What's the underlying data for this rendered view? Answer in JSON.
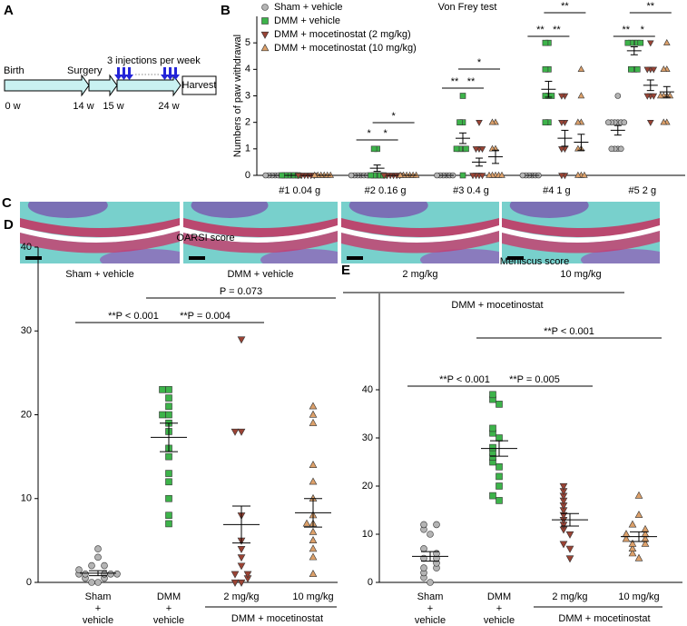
{
  "panel_labels": [
    "A",
    "B",
    "C",
    "D",
    "E"
  ],
  "timeline": {
    "note": "3 injections per week",
    "stages": [
      "Birth",
      "Surgery"
    ],
    "end": "Harvest",
    "weeks": [
      "0 w",
      "14 w",
      "15 w",
      "24 w"
    ]
  },
  "histology": {
    "labels": [
      "Sham + vehicle",
      "DMM + vehicle",
      "2 mg/kg",
      "10 mg/kg"
    ],
    "group_label": "DMM + mocetinostat"
  },
  "chart_data": [
    {
      "type": "dot",
      "title": "Von Frey test",
      "y_label": "Numbers of paw withdrawal",
      "categories": [
        "#1 0.04 g",
        "#2 0.16 g",
        "#3 0.4 g",
        "#4 1 g",
        "#5 2 g"
      ],
      "ylim": [
        0,
        6
      ],
      "yticks": [
        0,
        1,
        2,
        3,
        4,
        5
      ],
      "legend": "top-left",
      "series": [
        {
          "name": "Sham + vehicle",
          "color": "#b4b4b4",
          "marker": "circle",
          "values": [
            0,
            0,
            0,
            0,
            1.7
          ],
          "errors": [
            0,
            0,
            0,
            0,
            0.18
          ],
          "points": [
            [
              0,
              0,
              0,
              0,
              0,
              0
            ],
            [
              0,
              0,
              0,
              0,
              0,
              0
            ],
            [
              0,
              0,
              0,
              0,
              0,
              0
            ],
            [
              0,
              0,
              0,
              0,
              0,
              0
            ],
            [
              1,
              1,
              1,
              1,
              2,
              2,
              2,
              2,
              2,
              2,
              3
            ]
          ]
        },
        {
          "name": "DMM + vehicle",
          "color": "#3db34a",
          "marker": "square",
          "values": [
            0,
            0.27,
            1.4,
            3.25,
            4.7
          ],
          "errors": [
            0,
            0.12,
            0.2,
            0.3,
            0.15
          ],
          "points": [
            [
              0,
              0,
              0,
              0,
              0,
              0
            ],
            [
              0,
              0,
              0,
              0,
              0,
              1,
              1
            ],
            [
              0,
              1,
              1,
              1,
              1,
              2,
              2,
              3
            ],
            [
              2,
              2,
              3,
              3,
              3,
              4,
              4,
              5,
              5
            ],
            [
              4,
              4,
              4,
              5,
              5,
              5,
              5,
              5
            ]
          ]
        },
        {
          "name": "DMM + mocetinostat (2 mg/kg)",
          "color": "#9a4334",
          "marker": "tri-down",
          "values": [
            0,
            0,
            0.5,
            1.4,
            3.4
          ],
          "errors": [
            0,
            0,
            0.15,
            0.3,
            0.2
          ],
          "points": [
            [
              0,
              0,
              0,
              0,
              0,
              0
            ],
            [
              0,
              0,
              0,
              0,
              0,
              0
            ],
            [
              0,
              0,
              0,
              0,
              1,
              1,
              1,
              2
            ],
            [
              0,
              0,
              1,
              1,
              2,
              2,
              3,
              3
            ],
            [
              2,
              3,
              3,
              3,
              4,
              4,
              4,
              5
            ]
          ]
        },
        {
          "name": "DMM + mocetinostat (10 mg/kg)",
          "color": "#dca06a",
          "marker": "tri-up",
          "values": [
            0,
            0,
            0.7,
            1.25,
            3.15
          ],
          "errors": [
            0,
            0,
            0.25,
            0.3,
            0.2
          ],
          "points": [
            [
              0,
              0,
              0,
              0,
              0,
              0
            ],
            [
              0,
              0,
              0,
              0,
              0,
              0
            ],
            [
              0,
              0,
              0,
              0,
              0,
              1,
              1,
              2,
              2
            ],
            [
              0,
              0,
              0,
              1,
              1,
              2,
              2,
              3,
              4
            ],
            [
              2,
              2,
              3,
              3,
              3,
              3,
              4,
              4,
              5
            ]
          ]
        }
      ],
      "annotations": [
        "*",
        "*",
        "*",
        "**",
        "**",
        "*",
        "**",
        "**",
        "**",
        "**",
        "*",
        "**"
      ]
    },
    {
      "type": "scatter-mean",
      "title": "OARSI score",
      "categories": [
        [
          "Sham",
          "+",
          "vehicle"
        ],
        [
          "DMM",
          "+",
          "vehicle"
        ],
        [
          "2 mg/kg"
        ],
        [
          "10 mg/kg"
        ]
      ],
      "group_label": "DMM + mocetinostat",
      "ylim": [
        0,
        40
      ],
      "yticks": [
        0,
        10,
        20,
        30,
        40
      ],
      "colors": [
        "#b4b4b4",
        "#3db34a",
        "#9a4334",
        "#dca06a"
      ],
      "markers": [
        "circle",
        "square",
        "tri-down",
        "tri-up"
      ],
      "values": [
        1.1,
        17.3,
        6.9,
        8.3
      ],
      "errors": [
        0.3,
        1.7,
        2.2,
        1.7
      ],
      "points": [
        [
          0,
          0,
          0.5,
          0.5,
          1,
          1,
          1,
          1,
          1,
          1.5,
          2,
          2,
          3,
          4
        ],
        [
          7,
          8,
          10,
          12,
          13,
          15,
          16,
          18,
          19,
          20,
          20,
          21,
          22,
          23,
          23
        ],
        [
          0,
          0,
          0.5,
          1,
          1,
          2,
          3,
          4,
          5,
          8,
          18,
          18,
          29
        ],
        [
          1,
          3,
          4,
          5,
          6,
          7,
          7,
          8,
          10,
          12,
          14,
          19,
          20,
          21
        ]
      ],
      "annotations": [
        "**P < 0.001",
        "**P = 0.004",
        "P = 0.073"
      ]
    },
    {
      "type": "scatter-mean",
      "title": "Meniscus score",
      "categories": [
        [
          "Sham",
          "+",
          "vehicle"
        ],
        [
          "DMM",
          "+",
          "vehicle"
        ],
        [
          "2 mg/kg"
        ],
        [
          "10 mg/kg"
        ]
      ],
      "group_label": "DMM + mocetinostat",
      "ylim": [
        0,
        60
      ],
      "yticks": [
        0,
        10,
        20,
        30,
        40
      ],
      "colors": [
        "#b4b4b4",
        "#3db34a",
        "#9a4334",
        "#dca06a"
      ],
      "markers": [
        "circle",
        "square",
        "tri-down",
        "tri-up"
      ],
      "values": [
        5.4,
        27.8,
        13,
        9.5
      ],
      "errors": [
        1,
        1.6,
        1.3,
        1
      ],
      "points": [
        [
          0,
          1,
          2,
          3,
          3,
          4,
          5,
          5,
          6,
          7,
          10,
          11,
          12,
          12
        ],
        [
          17,
          18,
          20,
          22,
          24,
          25,
          26,
          27,
          28,
          30,
          31,
          32,
          37,
          38,
          39
        ],
        [
          5,
          7,
          8,
          10,
          11,
          12,
          13,
          14,
          15,
          16,
          17,
          18,
          19,
          20
        ],
        [
          5,
          6,
          7,
          8,
          8,
          9,
          9,
          10,
          10,
          11,
          12,
          14,
          18
        ]
      ],
      "annotations": [
        "**P < 0.001",
        "**P = 0.005",
        "**P < 0.001"
      ]
    }
  ]
}
